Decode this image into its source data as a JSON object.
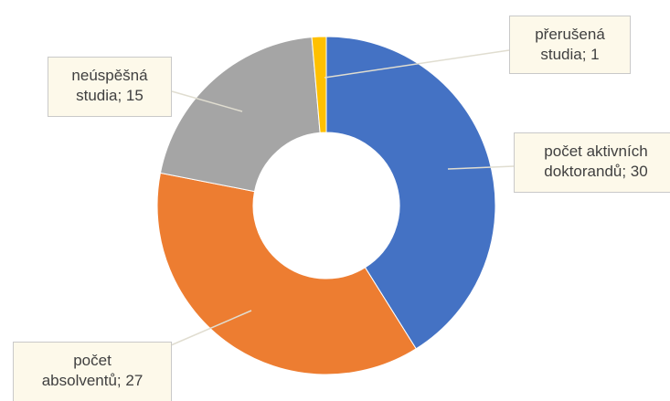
{
  "chart_data": {
    "type": "donut",
    "categories": [
      "počet aktivních doktorandů",
      "počet absolventů",
      "neúspěšná studia",
      "přerušená studia"
    ],
    "values": [
      30,
      27,
      15,
      1
    ],
    "value_labels": [
      "počet aktivních\ndoktorandů; 30",
      "počet\nabsolventů; 27",
      "neúspěšná\nstudia; 15",
      "přerušená\nstudia; 1"
    ],
    "colors": [
      "#4472c4",
      "#ed7d31",
      "#a5a5a5",
      "#ffc000"
    ]
  }
}
